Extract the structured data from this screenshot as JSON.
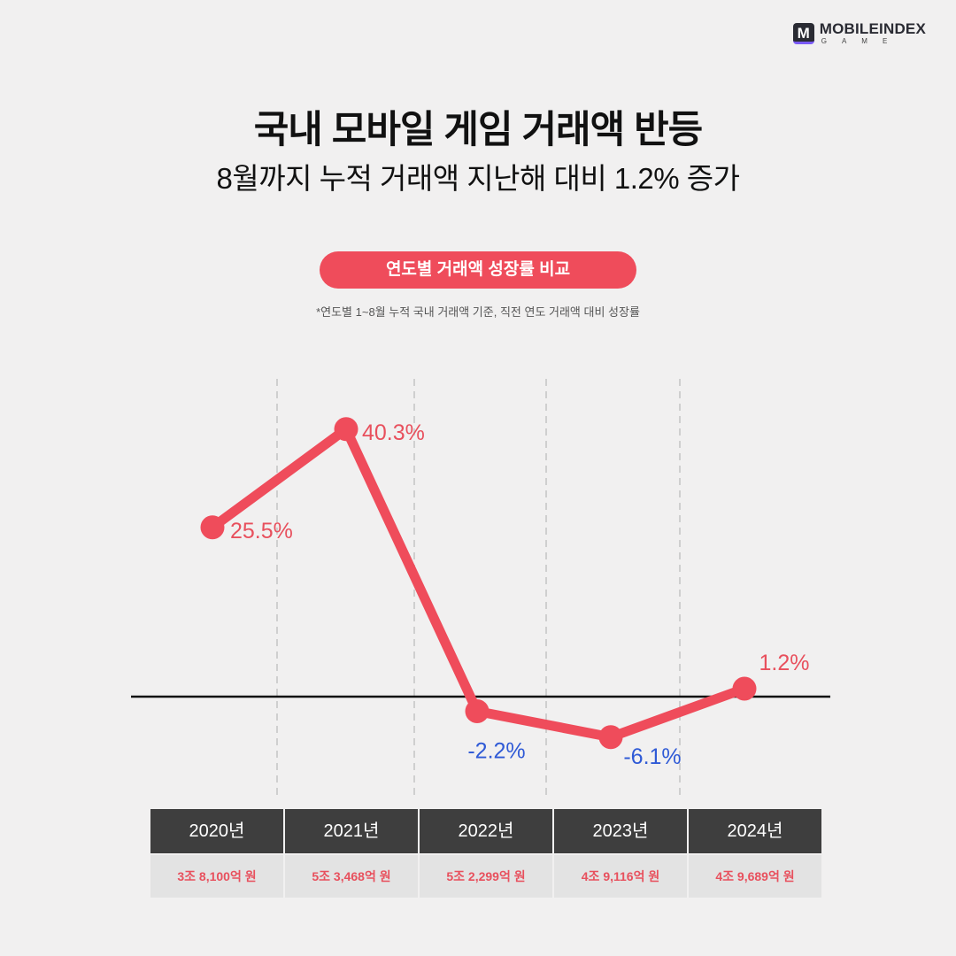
{
  "logo": {
    "mark": "M",
    "name": "MOBILEINDEX",
    "sub": "GAME"
  },
  "title": "국내 모바일 게임 거래액 반등",
  "subtitle": "8월까지 누적 거래액 지난해 대비 1.2% 증가",
  "pill_label": "연도별 거래액 성장률 비교",
  "note": "*연도별 1~8월 누적  국내 거래액 기준, 직전 연도 거래액 대비 성장률",
  "colors": {
    "accent": "#ef4c5b",
    "negative": "#2f5ad6",
    "header": "#3e3e3e"
  },
  "chart_data": {
    "type": "line",
    "categories": [
      "2020년",
      "2021년",
      "2022년",
      "2023년",
      "2024년"
    ],
    "values": [
      25.5,
      40.3,
      -2.2,
      -6.1,
      1.2
    ],
    "value_labels": [
      "25.5%",
      "40.3%",
      "-2.2%",
      "-6.1%",
      "1.2%"
    ],
    "amounts": [
      "3조 8,100억 원",
      "5조 3,468억 원",
      "5조 2,299억 원",
      "4조 9,116억 원",
      "4조 9,689억 원"
    ],
    "baseline": 0
  }
}
